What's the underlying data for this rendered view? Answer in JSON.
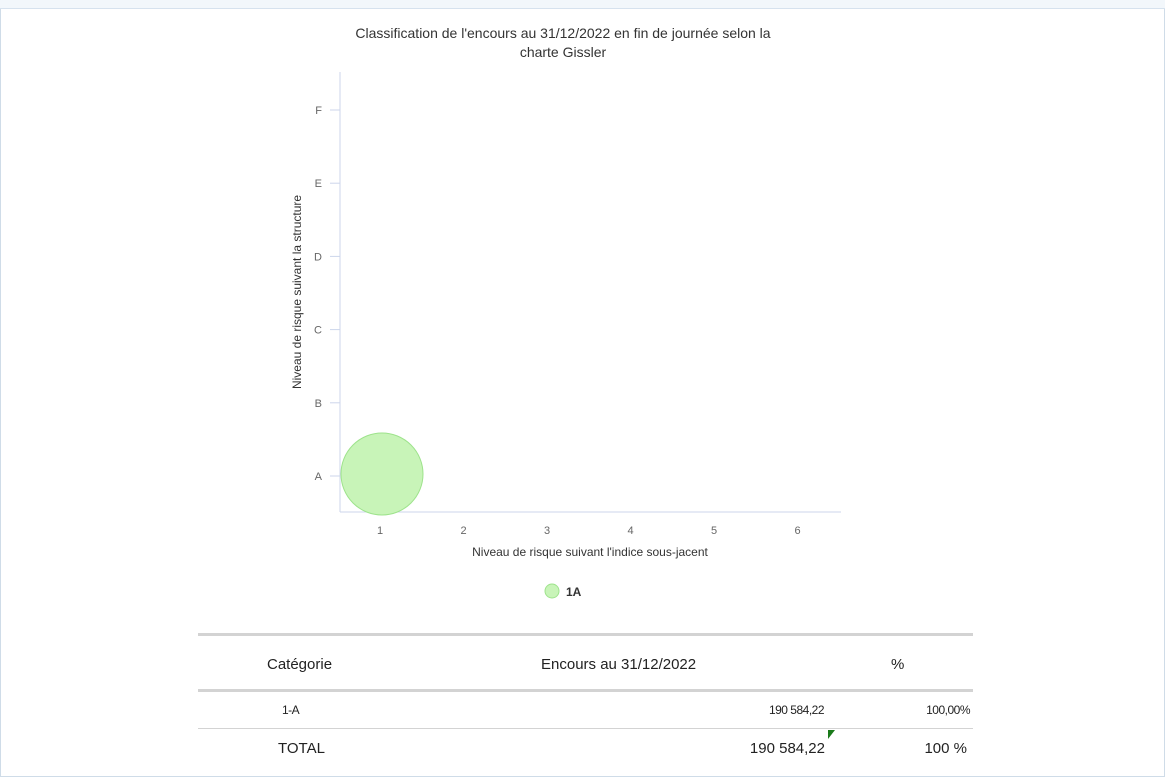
{
  "colors": {
    "bubble_fill": "#c8f4b8",
    "bubble_stroke": "#9ee38c",
    "axis_line": "#ccd6eb",
    "tick_text": "#666666",
    "title_text": "#333333"
  },
  "chart_data": {
    "type": "scatter",
    "title": "Classification de l'encours au 31/12/2022 en fin de journée selon la charte Gissler",
    "title_lines": [
      "Classification de l'encours au 31/12/2022 en fin de journée selon la",
      "charte Gissler"
    ],
    "xlabel": "Niveau de risque suivant l'indice sous-jacent",
    "ylabel": "Niveau de risque suivant la structure",
    "x_categories": [
      "1",
      "2",
      "3",
      "4",
      "5",
      "6"
    ],
    "y_categories": [
      "A",
      "B",
      "C",
      "D",
      "E",
      "F"
    ],
    "series": [
      {
        "name": "1A",
        "x": "1",
        "y": "A",
        "value": 190584.22
      }
    ],
    "legend": {
      "position": "bottom-center"
    },
    "grid": false
  },
  "table": {
    "headers": [
      "Catégorie",
      "Encours au 31/12/2022",
      "%"
    ],
    "rows": [
      {
        "category": "1-A",
        "encours": "190 584,22",
        "percent": "100,00%"
      }
    ],
    "total": {
      "label": "TOTAL",
      "encours": "190 584,22",
      "percent": "100 %"
    }
  }
}
